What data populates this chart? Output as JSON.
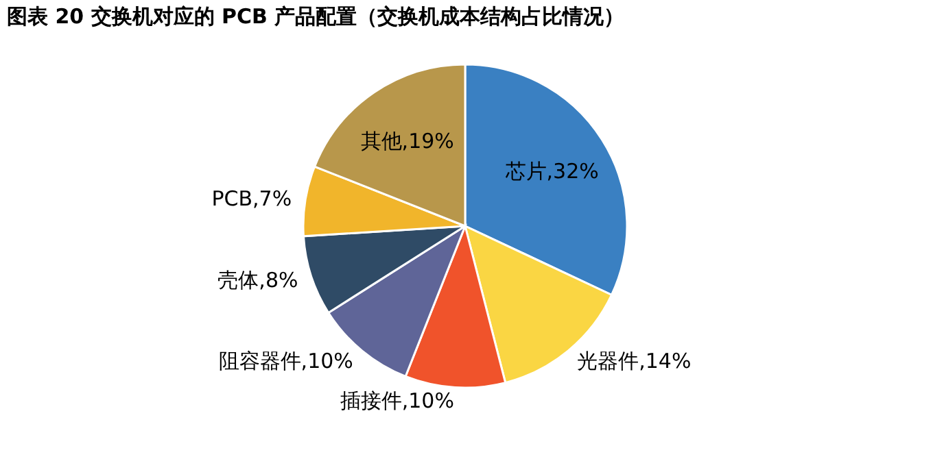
{
  "chart_data": {
    "type": "pie",
    "title": "图表 20 交换机对应的 PCB 产品配置（交换机成本结构占比情况）",
    "categories": [
      "芯片",
      "光器件",
      "插接件",
      "阻容器件",
      "壳体",
      "PCB",
      "其他"
    ],
    "values": [
      32,
      14,
      10,
      10,
      8,
      7,
      19
    ],
    "value_labels": [
      "32%",
      "14%",
      "10%",
      "10%",
      "8%",
      "7%",
      "19%"
    ],
    "colors": [
      "#3a80c2",
      "#fad643",
      "#f0532b",
      "#5f6598",
      "#2f4b66",
      "#f1b52b",
      "#b8974b"
    ],
    "legend": false
  }
}
